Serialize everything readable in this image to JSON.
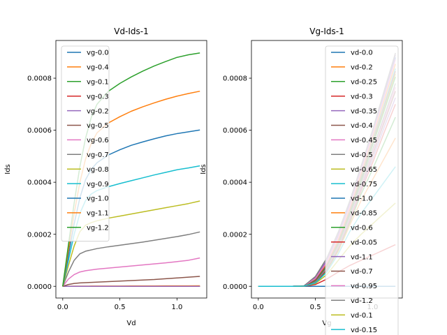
{
  "chart_data": [
    {
      "type": "line",
      "title": "Vd-Ids-1",
      "xlabel": "Vd",
      "ylabel": "Ids",
      "xlim": [
        -0.06,
        1.26
      ],
      "ylim": [
        -4.5e-05,
        0.000945
      ],
      "xticks": [
        0.0,
        0.5,
        1.0
      ],
      "xtick_labels": [
        "0.0",
        "0.5",
        "1.0"
      ],
      "yticks": [
        0.0,
        0.0002,
        0.0004,
        0.0006,
        0.0008
      ],
      "ytick_labels": [
        "0.0000",
        "0.0002",
        "0.0004",
        "0.0006",
        "0.0008"
      ],
      "grid": false,
      "legend_position": "upper-left",
      "x": [
        0.0,
        0.05,
        0.1,
        0.15,
        0.2,
        0.25,
        0.3,
        0.4,
        0.5,
        0.6,
        0.7,
        0.8,
        0.9,
        1.0,
        1.1,
        1.2
      ],
      "series": [
        {
          "name": "vg-0.0",
          "color": "#1f77b4",
          "values": [
            0,
            0,
            0,
            0,
            0,
            0,
            0,
            0,
            0,
            0,
            0,
            0,
            0,
            0,
            0,
            0
          ]
        },
        {
          "name": "vg-0.4",
          "color": "#ff7f0e",
          "values": [
            0,
            3e-07,
            5e-07,
            6e-07,
            7e-07,
            8e-07,
            9e-07,
            1e-06,
            1.1e-06,
            1.2e-06,
            1.3e-06,
            1.4e-06,
            1.5e-06,
            1.6e-06,
            1.7e-06,
            1.8e-06
          ]
        },
        {
          "name": "vg-0.1",
          "color": "#2ca02c",
          "values": [
            0,
            0,
            0,
            0,
            0,
            0,
            0,
            0,
            0,
            0,
            0,
            0,
            0,
            0,
            0,
            0
          ]
        },
        {
          "name": "vg-0.3",
          "color": "#d62728",
          "values": [
            0,
            0,
            0,
            0,
            0,
            0,
            0,
            0,
            0,
            0,
            0,
            0,
            0,
            0,
            0,
            0
          ]
        },
        {
          "name": "vg-0.2",
          "color": "#9467bd",
          "values": [
            0,
            0,
            0,
            0,
            0,
            0,
            0,
            0,
            0,
            0,
            0,
            0,
            0,
            0,
            0,
            0
          ]
        },
        {
          "name": "vg-0.5",
          "color": "#8c564b",
          "values": [
            0,
            7e-06,
            1.1e-05,
            1.3e-05,
            1.4e-05,
            1.5e-05,
            1.6e-05,
            1.8e-05,
            2e-05,
            2.2e-05,
            2.4e-05,
            2.6e-05,
            2.9e-05,
            3.2e-05,
            3.5e-05,
            3.8e-05
          ]
        },
        {
          "name": "vg-0.6",
          "color": "#e377c2",
          "values": [
            0,
            2.8e-05,
            4.5e-05,
            5.5e-05,
            6e-05,
            6.3e-05,
            6.6e-05,
            7e-05,
            7.4e-05,
            7.8e-05,
            8.2e-05,
            8.6e-05,
            9e-05,
            9.5e-05,
            0.0001,
            0.000109
          ]
        },
        {
          "name": "vg-0.7",
          "color": "#7f7f7f",
          "values": [
            0,
            5.5e-05,
            0.0001,
            0.000125,
            0.000135,
            0.00014,
            0.000145,
            0.000152,
            0.000158,
            0.000164,
            0.00017,
            0.000177,
            0.000184,
            0.000191,
            0.000199,
            0.000209
          ]
        },
        {
          "name": "vg-0.8",
          "color": "#bcbd22",
          "values": [
            0,
            8e-05,
            0.000155,
            0.00021,
            0.000235,
            0.000245,
            0.000252,
            0.000262,
            0.00027,
            0.000278,
            0.000286,
            0.000294,
            0.000302,
            0.00031,
            0.000318,
            0.000328
          ]
        },
        {
          "name": "vg-0.9",
          "color": "#17becf",
          "values": [
            0,
            0.0001,
            0.0002,
            0.00028,
            0.00033,
            0.000355,
            0.000368,
            0.000383,
            0.000395,
            0.000406,
            0.000417,
            0.000428,
            0.000438,
            0.000448,
            0.000455,
            0.000463
          ]
        },
        {
          "name": "vg-1.0",
          "color": "#1f77b4",
          "values": [
            0,
            0.00012,
            0.00024,
            0.00034,
            0.00041,
            0.00045,
            0.000475,
            0.000505,
            0.000525,
            0.000542,
            0.000555,
            0.000567,
            0.000578,
            0.000587,
            0.000594,
            0.000601
          ]
        },
        {
          "name": "vg-1.1",
          "color": "#ff7f0e",
          "values": [
            0,
            0.00014,
            0.00028,
            0.0004,
            0.00049,
            0.00055,
            0.00059,
            0.000628,
            0.000652,
            0.000673,
            0.00069,
            0.000705,
            0.000719,
            0.000731,
            0.000741,
            0.00075
          ]
        },
        {
          "name": "vg-1.2",
          "color": "#2ca02c",
          "values": [
            0,
            0.00016,
            0.00032,
            0.00046,
            0.00057,
            0.00065,
            0.0007,
            0.00075,
            0.00078,
            0.000805,
            0.000827,
            0.000847,
            0.000864,
            0.00088,
            0.00089,
            0.000897
          ]
        }
      ]
    },
    {
      "type": "line",
      "title": "Vg-Ids-1",
      "xlabel": "Vg",
      "ylabel": "Ids",
      "xlim": [
        -0.06,
        1.26
      ],
      "ylim": [
        -4.5e-05,
        0.000945
      ],
      "xticks": [
        0.0,
        0.5,
        1.0
      ],
      "xtick_labels": [
        "0.0",
        "0.5",
        "1.0"
      ],
      "yticks": [
        0.0,
        0.0002,
        0.0004,
        0.0006,
        0.0008
      ],
      "ytick_labels": [
        "0.0000",
        "0.0002",
        "0.0004",
        "0.0006",
        "0.0008"
      ],
      "grid": false,
      "legend_position": "upper-right",
      "x": [
        0.0,
        0.1,
        0.2,
        0.3,
        0.4,
        0.5,
        0.6,
        0.7,
        0.8,
        0.9,
        1.0,
        1.1,
        1.2
      ],
      "series": [
        {
          "name": "vd-0.0",
          "color": "#1f77b4",
          "values": [
            0,
            0,
            0,
            0,
            0,
            0,
            0,
            0,
            0,
            0,
            0,
            0,
            0
          ]
        },
        {
          "name": "vd-0.2",
          "color": "#ff7f0e",
          "values": [
            0,
            0,
            0,
            0,
            1e-06,
            1.4e-05,
            6e-05,
            0.000135,
            0.000235,
            0.00033,
            0.00041,
            0.00049,
            0.00057
          ]
        },
        {
          "name": "vd-0.25",
          "color": "#2ca02c",
          "values": [
            0,
            0,
            0,
            0,
            1e-06,
            1.5e-05,
            6.3e-05,
            0.00014,
            0.000245,
            0.000355,
            0.00045,
            0.00055,
            0.00065
          ]
        },
        {
          "name": "vd-0.3",
          "color": "#d62728",
          "values": [
            0,
            0,
            0,
            0,
            1e-06,
            1.6e-05,
            6.6e-05,
            0.000145,
            0.000252,
            0.000368,
            0.000475,
            0.00059,
            0.0007
          ]
        },
        {
          "name": "vd-0.35",
          "color": "#9467bd",
          "values": [
            0,
            0,
            0,
            0,
            1e-06,
            1.7e-05,
            6.8e-05,
            0.000149,
            0.000257,
            0.000376,
            0.00049,
            0.00061,
            0.000725
          ]
        },
        {
          "name": "vd-0.4",
          "color": "#8c564b",
          "values": [
            0,
            0,
            0,
            0,
            1e-06,
            1.8e-05,
            7e-05,
            0.000152,
            0.000262,
            0.000383,
            0.000505,
            0.000628,
            0.00075
          ]
        },
        {
          "name": "vd-0.45",
          "color": "#e377c2",
          "values": [
            0,
            0,
            0,
            0,
            1.1e-06,
            1.9e-05,
            7.2e-05,
            0.000155,
            0.000266,
            0.000389,
            0.000515,
            0.00064,
            0.000765
          ]
        },
        {
          "name": "vd-0.5",
          "color": "#7f7f7f",
          "values": [
            0,
            0,
            0,
            0,
            1.1e-06,
            2e-05,
            7.4e-05,
            0.000158,
            0.00027,
            0.000395,
            0.000525,
            0.000652,
            0.00078
          ]
        },
        {
          "name": "vd-0.65",
          "color": "#bcbd22",
          "values": [
            0,
            0,
            0,
            0,
            1.2e-06,
            2.3e-05,
            8e-05,
            0.000167,
            0.000282,
            0.000411,
            0.000548,
            0.000681,
            0.000816
          ]
        },
        {
          "name": "vd-0.75",
          "color": "#17becf",
          "values": [
            0,
            0,
            0,
            0,
            1.3e-06,
            2.5e-05,
            8.4e-05,
            0.000173,
            0.00029,
            0.000422,
            0.000561,
            0.000697,
            0.000837
          ]
        },
        {
          "name": "vd-1.0",
          "color": "#1f77b4",
          "values": [
            0,
            0,
            0,
            0,
            1.6e-06,
            3.2e-05,
            9.5e-05,
            0.000191,
            0.00031,
            0.000448,
            0.000587,
            0.000731,
            0.00088
          ]
        },
        {
          "name": "vd-0.85",
          "color": "#ff7f0e",
          "values": [
            0,
            0,
            0,
            0,
            1.4e-06,
            2.7e-05,
            8.8e-05,
            0.00018,
            0.000298,
            0.000433,
            0.000573,
            0.000712,
            0.000855
          ]
        },
        {
          "name": "vd-0.6",
          "color": "#2ca02c",
          "values": [
            0,
            0,
            0,
            0,
            1.2e-06,
            2.2e-05,
            7.8e-05,
            0.000164,
            0.000278,
            0.000406,
            0.000542,
            0.000673,
            0.000805
          ]
        },
        {
          "name": "vd-0.05",
          "color": "#d62728",
          "values": [
            0,
            0,
            0,
            0,
            3e-07,
            7e-06,
            2.8e-05,
            5.5e-05,
            8e-05,
            0.0001,
            0.00012,
            0.00014,
            0.00016
          ]
        },
        {
          "name": "vd-1.1",
          "color": "#9467bd",
          "values": [
            0,
            0,
            0,
            0,
            1.7e-06,
            3.5e-05,
            0.0001,
            0.000199,
            0.000318,
            0.000455,
            0.000594,
            0.000741,
            0.00089
          ]
        },
        {
          "name": "vd-0.7",
          "color": "#8c564b",
          "values": [
            0,
            0,
            0,
            0,
            1.3e-06,
            2.4e-05,
            8.2e-05,
            0.00017,
            0.000286,
            0.000417,
            0.000555,
            0.00069,
            0.000827
          ]
        },
        {
          "name": "vd-0.95",
          "color": "#e377c2",
          "values": [
            0,
            0,
            0,
            0,
            1.5e-06,
            3e-05,
            9.3e-05,
            0.000188,
            0.000306,
            0.000443,
            0.000582,
            0.000725,
            0.000872
          ]
        },
        {
          "name": "vd-1.2",
          "color": "#7f7f7f",
          "values": [
            0,
            0,
            0,
            0,
            1.8e-06,
            3.8e-05,
            0.000109,
            0.000209,
            0.000328,
            0.000463,
            0.000601,
            0.00075,
            0.000897
          ]
        },
        {
          "name": "vd-0.1",
          "color": "#bcbd22",
          "values": [
            0,
            0,
            0,
            0,
            5e-07,
            1.1e-05,
            4.5e-05,
            0.0001,
            0.000155,
            0.0002,
            0.00024,
            0.00028,
            0.00032
          ]
        },
        {
          "name": "vd-0.15",
          "color": "#17becf",
          "values": [
            0,
            0,
            0,
            0,
            6e-07,
            1.3e-05,
            5.5e-05,
            0.000125,
            0.00021,
            0.00028,
            0.00034,
            0.0004,
            0.00046
          ]
        }
      ]
    }
  ]
}
